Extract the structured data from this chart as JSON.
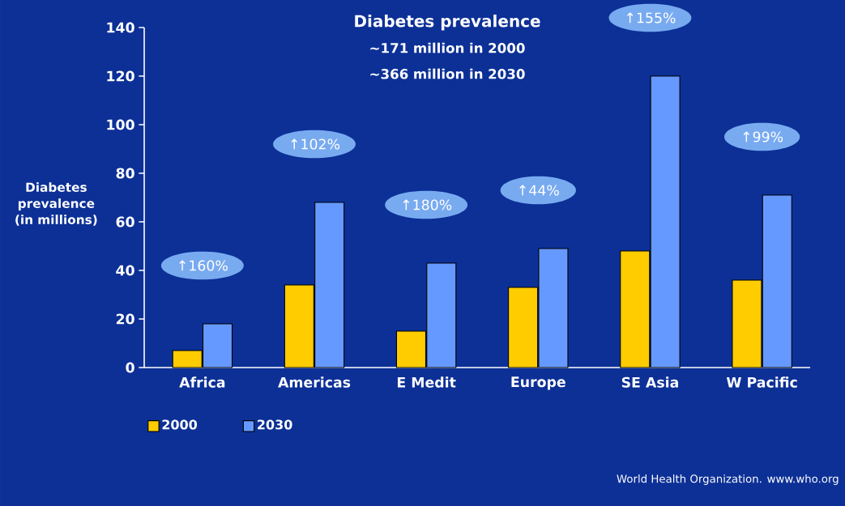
{
  "chart_data": {
    "type": "bar",
    "title": "Diabetes prevalence",
    "subtitle": "~171 million in 2000 ~366 million in 2030",
    "ylabel": "Diabetes prevalence (in millions)",
    "categories": [
      "Africa",
      "Americas",
      "E Medit",
      "Europe",
      "SE Asia",
      "W Pacific"
    ],
    "series": [
      {
        "name": "2000",
        "color": "#ffcc00",
        "values": [
          7,
          34,
          15,
          33,
          48,
          36
        ]
      },
      {
        "name": "2030",
        "color": "#6699ff",
        "values": [
          18,
          68,
          43,
          49,
          120,
          71
        ]
      }
    ],
    "ylim": [
      0,
      140
    ],
    "yticks": [
      0,
      20,
      40,
      60,
      80,
      100,
      120,
      140
    ],
    "legend": "bottom left",
    "grid": false,
    "annotations": [
      "↑160%",
      "↑102%",
      "↑180%",
      "↑44%",
      "↑155%",
      "↑99%",
      "World Health Organization. www.who.org"
    ]
  }
}
